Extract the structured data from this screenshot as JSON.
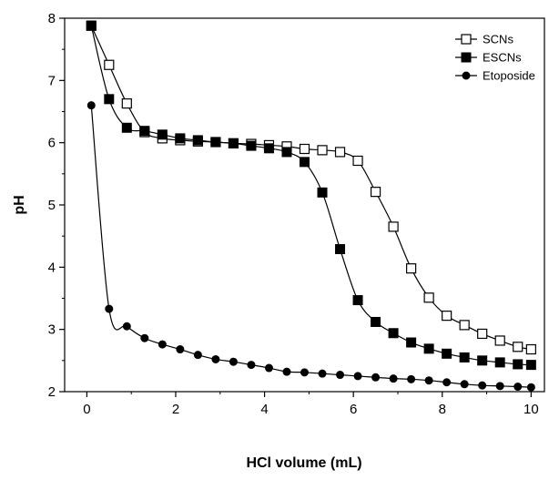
{
  "chart_data": {
    "type": "line",
    "xlabel": "HCl volume (mL)",
    "ylabel": "pH",
    "xlim": [
      -0.5,
      10.3
    ],
    "ylim": [
      2,
      8
    ],
    "xticks": [
      0,
      2,
      4,
      6,
      8,
      10
    ],
    "yticks": [
      2,
      3,
      4,
      5,
      6,
      7,
      8
    ],
    "legend_position": "top-right",
    "grid": false,
    "series": [
      {
        "name": "SCNs",
        "marker": "open-square",
        "color": "#000000",
        "x": [
          0.1,
          0.5,
          0.9,
          1.3,
          1.7,
          2.1,
          2.5,
          2.9,
          3.3,
          3.7,
          4.1,
          4.5,
          4.9,
          5.3,
          5.7,
          6.1,
          6.5,
          6.9,
          7.3,
          7.7,
          8.1,
          8.5,
          8.9,
          9.3,
          9.7,
          10.0
        ],
        "y": [
          7.88,
          7.25,
          6.63,
          6.17,
          6.07,
          6.04,
          6.02,
          6.01,
          5.99,
          5.98,
          5.96,
          5.94,
          5.9,
          5.88,
          5.85,
          5.71,
          5.21,
          4.65,
          3.98,
          3.51,
          3.22,
          3.07,
          2.93,
          2.82,
          2.72,
          2.68
        ]
      },
      {
        "name": "ESCNs",
        "marker": "filled-square",
        "color": "#000000",
        "x": [
          0.1,
          0.5,
          0.9,
          1.3,
          1.7,
          2.1,
          2.5,
          2.9,
          3.3,
          3.7,
          4.1,
          4.5,
          4.9,
          5.3,
          5.7,
          6.1,
          6.5,
          6.9,
          7.3,
          7.7,
          8.1,
          8.5,
          8.9,
          9.3,
          9.7,
          10.0
        ],
        "y": [
          7.88,
          6.7,
          6.24,
          6.19,
          6.13,
          6.07,
          6.04,
          6.01,
          5.99,
          5.95,
          5.91,
          5.85,
          5.69,
          5.2,
          4.29,
          3.47,
          3.12,
          2.94,
          2.79,
          2.69,
          2.61,
          2.55,
          2.5,
          2.47,
          2.44,
          2.43
        ]
      },
      {
        "name": "Etoposide",
        "marker": "filled-circle",
        "color": "#000000",
        "x": [
          0.1,
          0.5,
          0.9,
          1.3,
          1.7,
          2.1,
          2.5,
          2.9,
          3.3,
          3.7,
          4.1,
          4.5,
          4.9,
          5.3,
          5.7,
          6.1,
          6.5,
          6.9,
          7.3,
          7.7,
          8.1,
          8.5,
          8.9,
          9.3,
          9.7,
          10.0
        ],
        "y": [
          6.6,
          3.33,
          3.05,
          2.86,
          2.76,
          2.68,
          2.59,
          2.52,
          2.48,
          2.43,
          2.38,
          2.32,
          2.31,
          2.29,
          2.27,
          2.25,
          2.23,
          2.21,
          2.2,
          2.18,
          2.15,
          2.12,
          2.1,
          2.09,
          2.08,
          2.07
        ]
      }
    ]
  }
}
